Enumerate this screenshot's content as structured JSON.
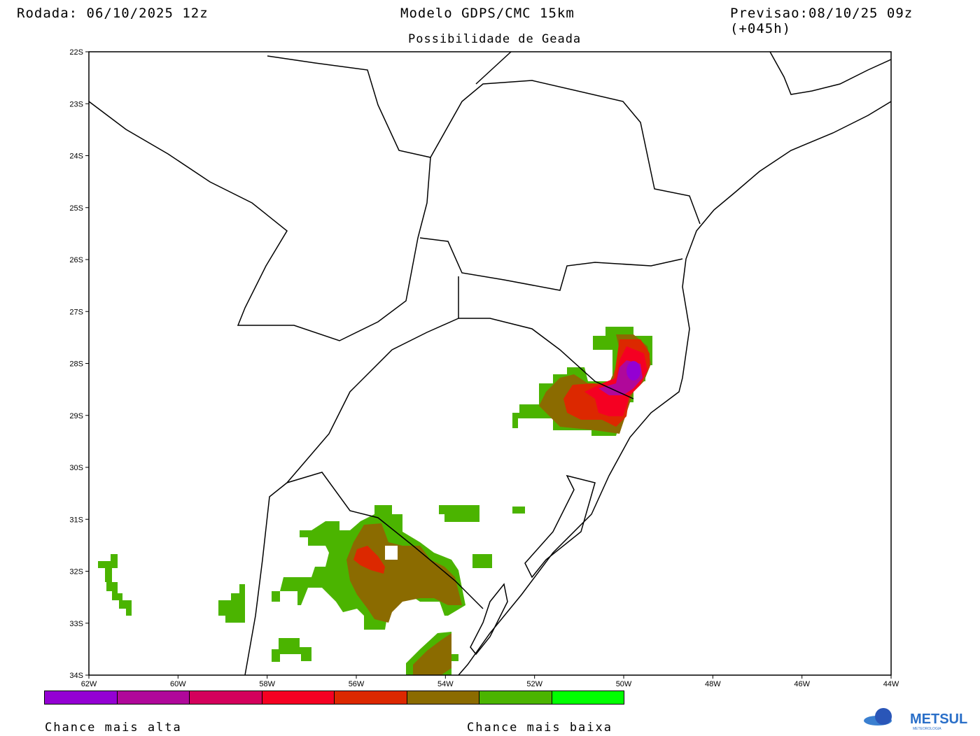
{
  "header": {
    "run": "Rodada: 06/10/2025 12z",
    "model": "Modelo GDPS/CMC 15km",
    "forecast": "Previsao:08/10/25 09z (+045h)",
    "subtitle": "Possibilidade de Geada"
  },
  "axes": {
    "lat_labels": [
      "22S",
      "23S",
      "24S",
      "25S",
      "26S",
      "27S",
      "28S",
      "29S",
      "30S",
      "31S",
      "32S",
      "33S",
      "34S"
    ],
    "lon_labels": [
      "62W",
      "60W",
      "58W",
      "56W",
      "54W",
      "52W",
      "50W",
      "48W",
      "46W",
      "44W"
    ]
  },
  "colorbar": {
    "colors": [
      "#9400d3",
      "#b0089a",
      "#d4005c",
      "#f50022",
      "#dc2800",
      "#8b6b00",
      "#4bb400",
      "#00ff00"
    ]
  },
  "legend": {
    "high": "Chance mais alta",
    "low": "Chance mais baixa"
  },
  "logo": {
    "name": "METSUL",
    "sub": "METEOROLOGIA"
  }
}
